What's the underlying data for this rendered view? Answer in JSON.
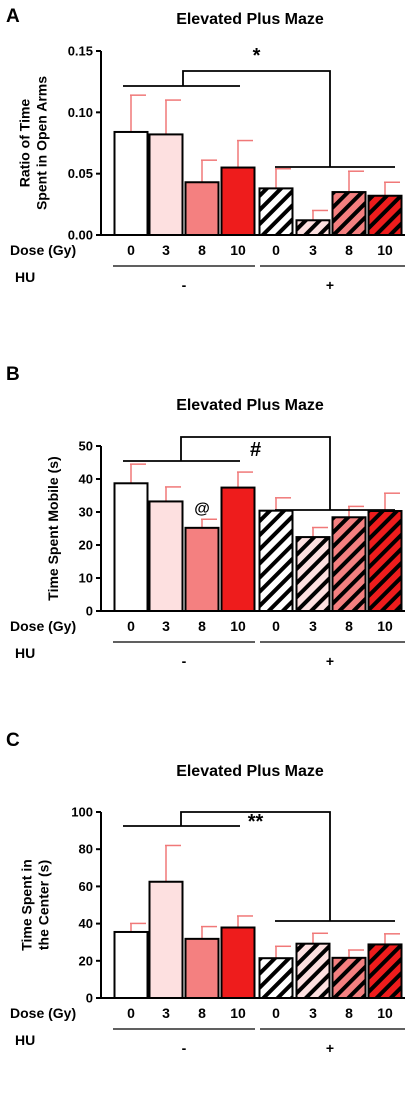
{
  "chart_data": [
    {
      "type": "bar",
      "panel": "A",
      "title": "Elevated Plus Maze",
      "ylabel_lines": [
        "Ratio of Time",
        "Spent in Open Arms"
      ],
      "ylim": [
        0,
        0.15
      ],
      "yticks": [
        "0.00",
        "0.05",
        "0.10",
        "0.15"
      ],
      "row1_label": "Dose (Gy)",
      "row2_label": "HU",
      "categories": [
        "0",
        "3",
        "8",
        "10",
        "0",
        "3",
        "8",
        "10"
      ],
      "hu_groups": [
        "-",
        "+"
      ],
      "values": [
        0.084,
        0.082,
        0.043,
        0.055,
        0.038,
        0.012,
        0.035,
        0.032
      ],
      "errors": [
        0.03,
        0.028,
        0.018,
        0.022,
        0.016,
        0.008,
        0.017,
        0.011
      ],
      "significance": "*",
      "annotations": []
    },
    {
      "type": "bar",
      "panel": "B",
      "title": "Elevated Plus Maze",
      "ylabel_lines": [
        "Time Spent Mobile (s)"
      ],
      "ylim": [
        0,
        50
      ],
      "yticks": [
        "0",
        "10",
        "20",
        "30",
        "40",
        "50"
      ],
      "row1_label": "Dose (Gy)",
      "row2_label": "HU",
      "categories": [
        "0",
        "3",
        "8",
        "10",
        "0",
        "3",
        "8",
        "10"
      ],
      "hu_groups": [
        "-",
        "+"
      ],
      "values": [
        38.7,
        33.2,
        25.2,
        37.4,
        30.4,
        22.4,
        28.4,
        30.3
      ],
      "errors": [
        5.8,
        4.4,
        2.6,
        4.7,
        3.9,
        2.9,
        3.3,
        5.4
      ],
      "significance": "#",
      "annotations": [
        {
          "bar": 2,
          "text": "@"
        }
      ]
    },
    {
      "type": "bar",
      "panel": "C",
      "title": "Elevated Plus Maze",
      "ylabel_lines": [
        "Time Spent in",
        "the Center (s)"
      ],
      "ylim": [
        0,
        100
      ],
      "yticks": [
        "0",
        "20",
        "40",
        "60",
        "80",
        "100"
      ],
      "row1_label": "Dose (Gy)",
      "row2_label": "HU",
      "categories": [
        "0",
        "3",
        "8",
        "10",
        "0",
        "3",
        "8",
        "10"
      ],
      "hu_groups": [
        "-",
        "+"
      ],
      "values": [
        35.5,
        62.5,
        31.8,
        37.9,
        21.4,
        29.2,
        21.6,
        28.8
      ],
      "errors": [
        4.6,
        19.5,
        6.6,
        6.2,
        6.4,
        5.6,
        4.2,
        5.7
      ],
      "significance": "**",
      "annotations": []
    }
  ],
  "colors": {
    "dose_fills": [
      "#ffffff",
      "#fde0e0",
      "#f48080",
      "#ee1c1c"
    ],
    "axis": "#000000",
    "error": "#f07878"
  }
}
